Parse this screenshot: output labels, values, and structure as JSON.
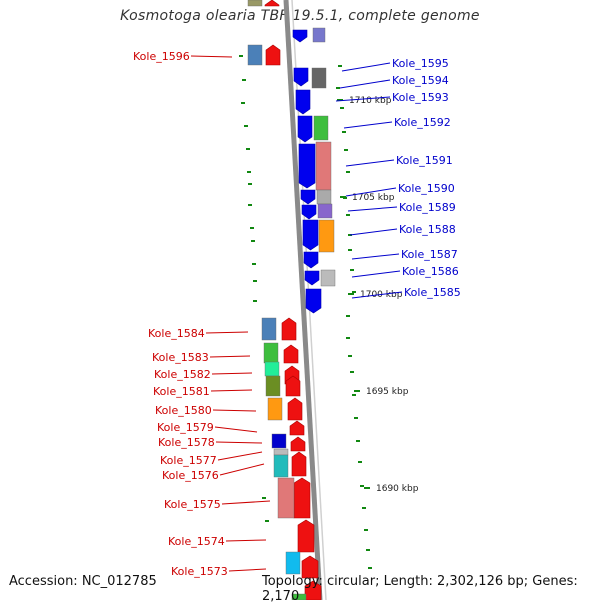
{
  "title": "Kosmotoga olearia TBF 19.5.1, complete genome",
  "accession": "Accession: NC_012785",
  "topology": "Topology: circular; Length: 2,302,126 bp; Genes: 2,170",
  "colors": {
    "forward_label": "#0000cc",
    "reverse_label": "#cc0000",
    "backbone": "#8a8a8a",
    "tick": "#118811"
  },
  "kbp_labels": [
    "1710 kbp",
    "1705 kbp",
    "1700 kbp",
    "1695 kbp",
    "1690 kbp"
  ],
  "forward_genes": [
    "Kole_1595",
    "Kole_1594",
    "Kole_1593",
    "Kole_1592",
    "Kole_1591",
    "Kole_1590",
    "Kole_1589",
    "Kole_1588",
    "Kole_1587",
    "Kole_1586",
    "Kole_1585"
  ],
  "reverse_genes": [
    "Kole_1596",
    "Kole_1584",
    "Kole_1583",
    "Kole_1582",
    "Kole_1581",
    "Kole_1580",
    "Kole_1579",
    "Kole_1578",
    "Kole_1577",
    "Kole_1576",
    "Kole_1575",
    "Kole_1574",
    "Kole_1573"
  ]
}
